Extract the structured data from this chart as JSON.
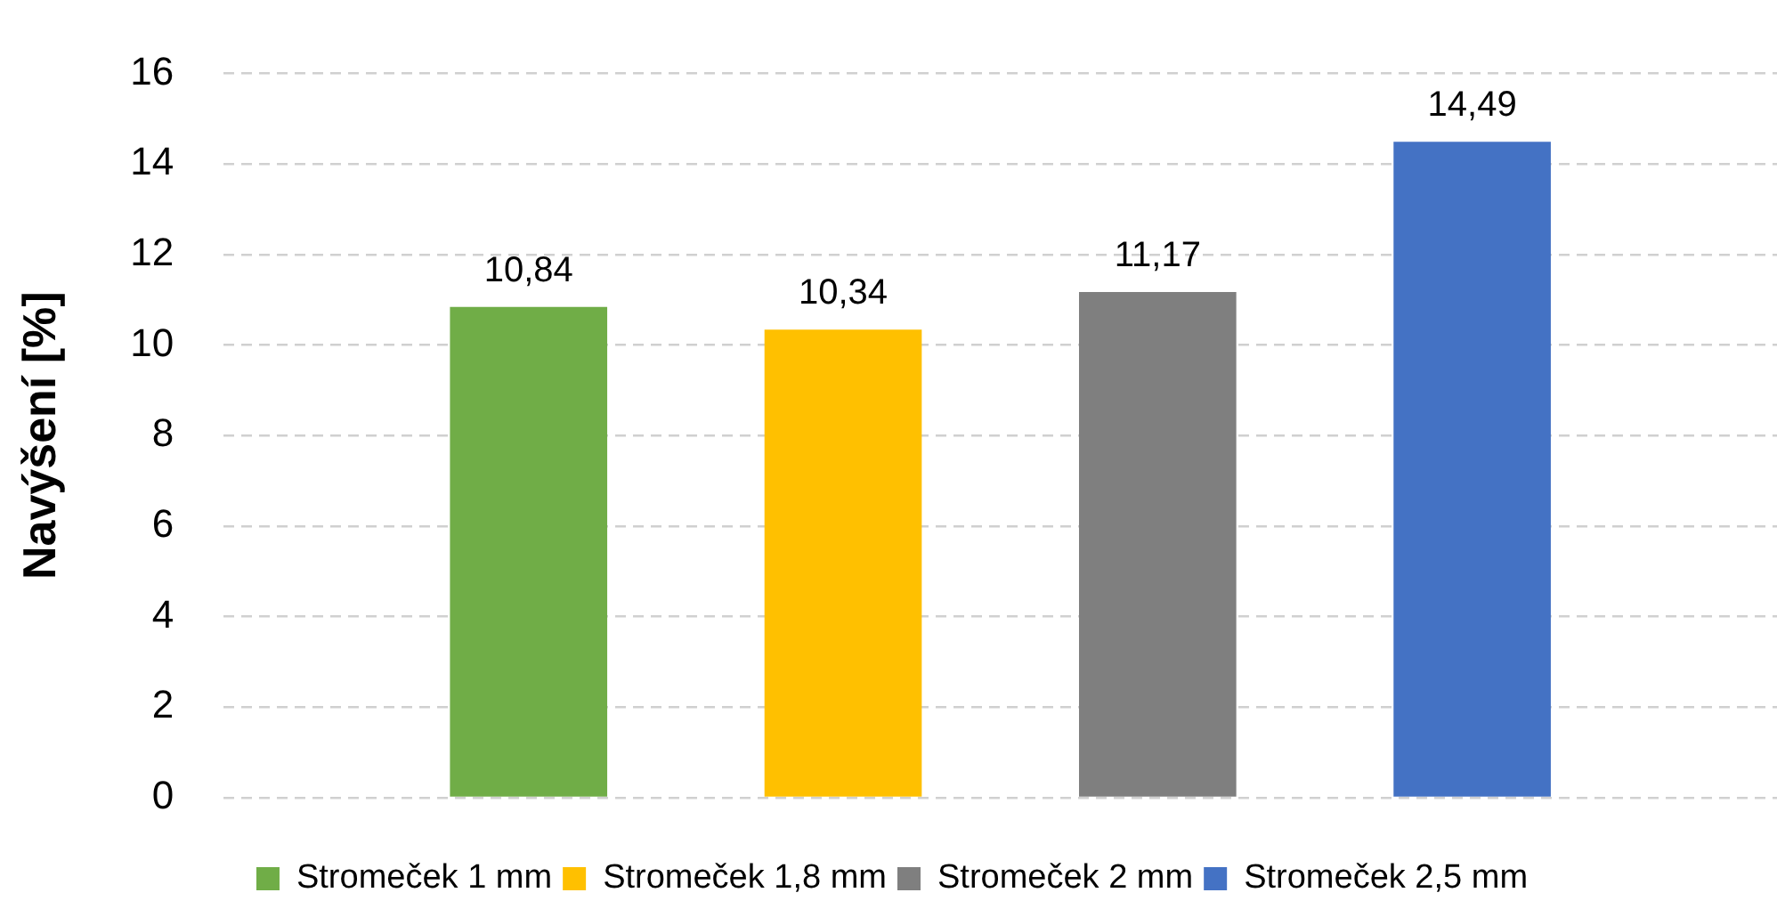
{
  "chart_data": {
    "type": "bar",
    "ylabel": "Navýšení [%]",
    "categories": [
      null
    ],
    "series": [
      {
        "name": "Stromeček 1 mm",
        "color": "#70ad47",
        "values": [
          10.84
        ],
        "value_labels": [
          "10,84"
        ]
      },
      {
        "name": "Stromeček 1,8 mm",
        "color": "#ffc000",
        "values": [
          10.34
        ],
        "value_labels": [
          "10,34"
        ]
      },
      {
        "name": "Stromeček 2 mm",
        "color": "#7f7f7f",
        "values": [
          11.17
        ],
        "value_labels": [
          "11,17"
        ]
      },
      {
        "name": "Stromeček 2,5 mm",
        "color": "#4472c4",
        "values": [
          14.49
        ],
        "value_labels": [
          "14,49"
        ]
      }
    ],
    "ylim": [
      0,
      16
    ],
    "yticks": [
      0,
      2,
      4,
      6,
      8,
      10,
      12,
      14,
      16
    ],
    "grid": "y",
    "legend": "bottom"
  }
}
